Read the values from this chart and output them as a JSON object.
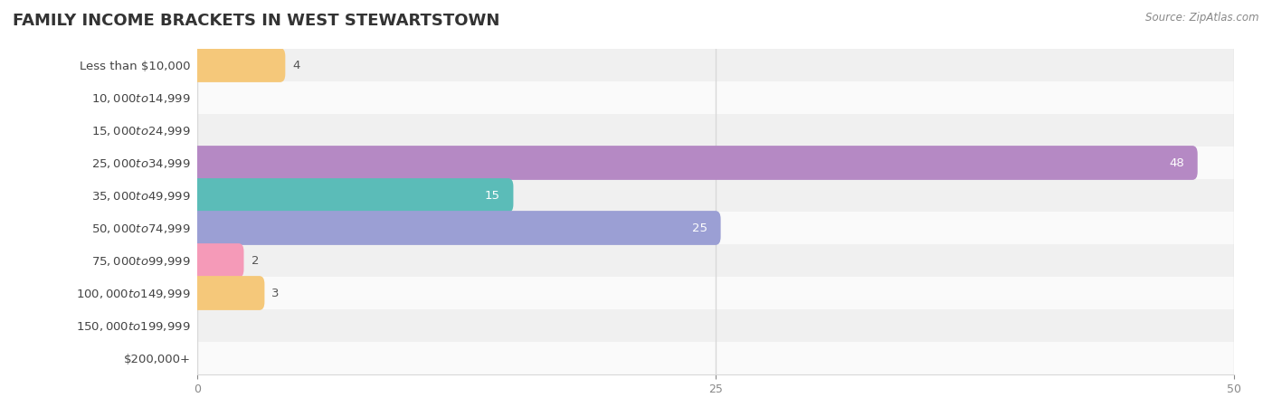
{
  "title": "FAMILY INCOME BRACKETS IN WEST STEWARTSTOWN",
  "source": "Source: ZipAtlas.com",
  "categories": [
    "Less than $10,000",
    "$10,000 to $14,999",
    "$15,000 to $24,999",
    "$25,000 to $34,999",
    "$35,000 to $49,999",
    "$50,000 to $74,999",
    "$75,000 to $99,999",
    "$100,000 to $149,999",
    "$150,000 to $199,999",
    "$200,000+"
  ],
  "values": [
    4,
    0,
    0,
    48,
    15,
    25,
    2,
    3,
    0,
    0
  ],
  "bar_colors": [
    "#f5c87a",
    "#f4a8a0",
    "#a8c4e0",
    "#b589c4",
    "#5bbcb8",
    "#9b9fd4",
    "#f59ab8",
    "#f5c87a",
    "#f4a8a0",
    "#a8c4e0"
  ],
  "xlim": [
    0,
    50
  ],
  "xticks": [
    0,
    25,
    50
  ],
  "background_color": "#ffffff",
  "bar_height": 0.55,
  "title_fontsize": 13,
  "label_fontsize": 9.5,
  "value_label_color_inside": "#ffffff",
  "value_label_color_outside": "#555555",
  "grid_color": "#d8d8d8",
  "row_bg_colors": [
    "#f0f0f0",
    "#fafafa"
  ]
}
